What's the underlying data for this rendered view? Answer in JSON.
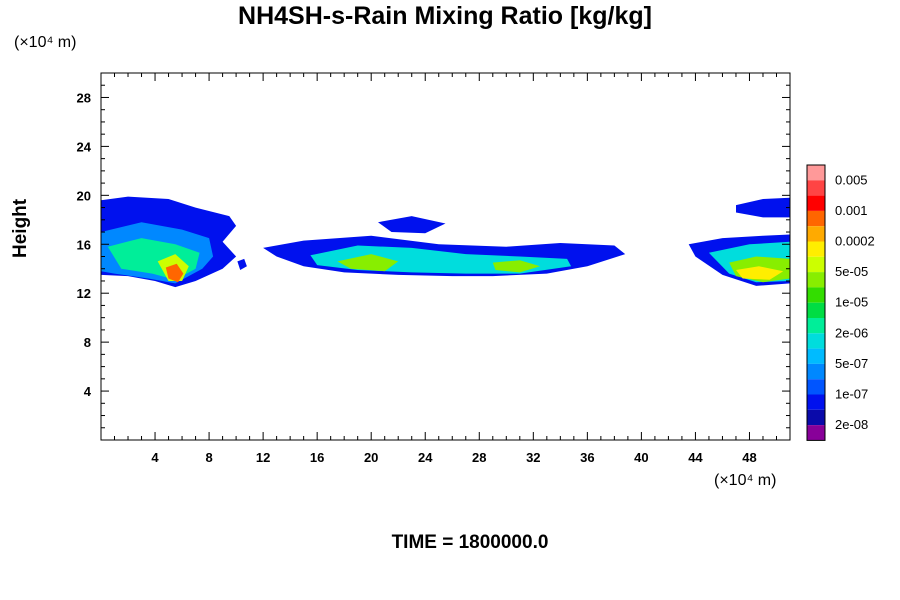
{
  "chart_data": {
    "type": "heatmap",
    "title": "NH4SH-s-Rain Mixing Ratio [kg/kg]",
    "xlabel": "",
    "ylabel": "Height",
    "x_unit": "(×10⁴ m)",
    "y_unit": "(×10⁴ m)",
    "footer": "TIME = 1800000.0",
    "xlim": [
      0,
      51
    ],
    "ylim": [
      0,
      30
    ],
    "x_ticks": [
      "4",
      "8",
      "12",
      "16",
      "20",
      "24",
      "28",
      "32",
      "36",
      "40",
      "44",
      "48"
    ],
    "y_ticks": [
      "4",
      "8",
      "12",
      "16",
      "20",
      "24",
      "28"
    ],
    "colorbar": {
      "labels": [
        "0.005",
        "0.001",
        "0.0002",
        "5e-05",
        "1e-05",
        "2e-06",
        "5e-07",
        "1e-07",
        "2e-08"
      ],
      "colors": [
        "#ff9999",
        "#ff4444",
        "#ff0000",
        "#ff6600",
        "#ffaa00",
        "#ffee00",
        "#ccff00",
        "#88ee00",
        "#33dd00",
        "#00dd44",
        "#00ee99",
        "#00dddd",
        "#00bbff",
        "#0088ff",
        "#0055ff",
        "#0011ee",
        "#0a0aaa",
        "#880099"
      ]
    },
    "regions": [
      {
        "level": 2,
        "points": [
          [
            0,
            19.6
          ],
          [
            2,
            19.9
          ],
          [
            5,
            19.7
          ],
          [
            7,
            19
          ],
          [
            9.5,
            18.3
          ],
          [
            10,
            17.5
          ],
          [
            9,
            16.2
          ],
          [
            10,
            15
          ],
          [
            9,
            14
          ],
          [
            7,
            13
          ],
          [
            5.5,
            12.5
          ],
          [
            4,
            13
          ],
          [
            2,
            13.4
          ],
          [
            0,
            13.5
          ]
        ]
      },
      {
        "level": 4,
        "points": [
          [
            0,
            17
          ],
          [
            3,
            17.8
          ],
          [
            6,
            17.2
          ],
          [
            8,
            16.5
          ],
          [
            8.3,
            15
          ],
          [
            7.5,
            14
          ],
          [
            5.5,
            12.8
          ],
          [
            3.5,
            13.2
          ],
          [
            1,
            13.6
          ],
          [
            0,
            13.8
          ]
        ]
      },
      {
        "level": 7,
        "points": [
          [
            0.5,
            15.8
          ],
          [
            3,
            16.5
          ],
          [
            5.5,
            16
          ],
          [
            7.3,
            15.3
          ],
          [
            7,
            14
          ],
          [
            5.5,
            13.1
          ],
          [
            3.8,
            13.6
          ],
          [
            1.5,
            14
          ]
        ]
      },
      {
        "level": 11,
        "points": [
          [
            4.2,
            14.6
          ],
          [
            5.5,
            15.2
          ],
          [
            6.5,
            14.2
          ],
          [
            6,
            13
          ],
          [
            5,
            13
          ]
        ]
      },
      {
        "level": 14,
        "points": [
          [
            4.8,
            14.1
          ],
          [
            5.6,
            14.4
          ],
          [
            6.1,
            13.6
          ],
          [
            5.7,
            12.9
          ],
          [
            5,
            13.2
          ]
        ]
      },
      {
        "level": 2,
        "points": [
          [
            10.1,
            14.6
          ],
          [
            10.6,
            14.8
          ],
          [
            10.8,
            14.2
          ],
          [
            10.3,
            13.9
          ]
        ]
      },
      {
        "level": 2,
        "points": [
          [
            12,
            15.7
          ],
          [
            15,
            16.3
          ],
          [
            20,
            16.7
          ],
          [
            25,
            16
          ],
          [
            30,
            15.8
          ],
          [
            34,
            16.1
          ],
          [
            38,
            15.9
          ],
          [
            38.8,
            15.2
          ],
          [
            36,
            14.2
          ],
          [
            33,
            13.6
          ],
          [
            29,
            13.4
          ],
          [
            26,
            13.4
          ],
          [
            22,
            13.5
          ],
          [
            18,
            13.7
          ],
          [
            15,
            14.2
          ],
          [
            13,
            15
          ]
        ]
      },
      {
        "level": 2,
        "points": [
          [
            20.5,
            17.8
          ],
          [
            23,
            18.3
          ],
          [
            25.5,
            17.7
          ],
          [
            24,
            16.9
          ],
          [
            21.5,
            17
          ]
        ]
      },
      {
        "level": 6,
        "points": [
          [
            15.5,
            15.1
          ],
          [
            19,
            15.9
          ],
          [
            23,
            15.7
          ],
          [
            27,
            15.2
          ],
          [
            31,
            15
          ],
          [
            34.5,
            14.8
          ],
          [
            34.8,
            14.2
          ],
          [
            31,
            13.6
          ],
          [
            27,
            13.6
          ],
          [
            23,
            13.7
          ],
          [
            19,
            13.9
          ],
          [
            16,
            14.3
          ]
        ]
      },
      {
        "level": 10,
        "points": [
          [
            17.5,
            14.6
          ],
          [
            20,
            15.2
          ],
          [
            22,
            14.6
          ],
          [
            21,
            13.8
          ],
          [
            18.5,
            14
          ]
        ]
      },
      {
        "level": 10,
        "points": [
          [
            29,
            14.5
          ],
          [
            31,
            14.7
          ],
          [
            32.5,
            14.2
          ],
          [
            31,
            13.7
          ],
          [
            29.2,
            13.9
          ]
        ]
      },
      {
        "level": 2,
        "points": [
          [
            43.5,
            16
          ],
          [
            46,
            16.5
          ],
          [
            49,
            16.7
          ],
          [
            51,
            16.8
          ],
          [
            51,
            12.8
          ],
          [
            48.5,
            12.6
          ],
          [
            46,
            13.5
          ],
          [
            44,
            15
          ]
        ]
      },
      {
        "level": 2,
        "points": [
          [
            47,
            19.2
          ],
          [
            49,
            19.7
          ],
          [
            51,
            19.8
          ],
          [
            51,
            18.2
          ],
          [
            49,
            18.2
          ],
          [
            47,
            18.6
          ]
        ]
      },
      {
        "level": 6,
        "points": [
          [
            45,
            15.3
          ],
          [
            48,
            16
          ],
          [
            51,
            16.2
          ],
          [
            51,
            13
          ],
          [
            48.5,
            12.9
          ],
          [
            46.5,
            13.6
          ]
        ]
      },
      {
        "level": 10,
        "points": [
          [
            46.5,
            14.5
          ],
          [
            48.5,
            15
          ],
          [
            51,
            14.8
          ],
          [
            51,
            13.2
          ],
          [
            49,
            12.9
          ],
          [
            47,
            13.4
          ]
        ]
      },
      {
        "level": 12,
        "points": [
          [
            47,
            13.9
          ],
          [
            48.7,
            14.2
          ],
          [
            50.5,
            13.8
          ],
          [
            49.5,
            13.1
          ],
          [
            47.5,
            13.2
          ]
        ]
      }
    ]
  }
}
